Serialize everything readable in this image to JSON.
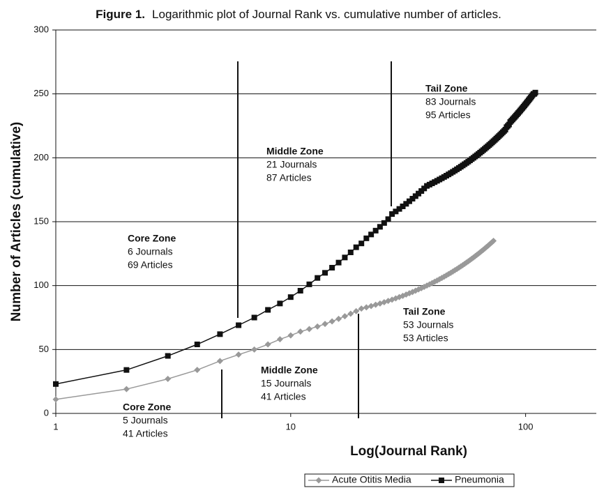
{
  "chart_data": {
    "type": "line",
    "figure_label": "Figure 1.",
    "title": "Logarithmic plot of Journal Rank vs. cumulative number of articles.",
    "xlabel": "Log(Journal Rank)",
    "ylabel": "Number of Articles (cumulative)",
    "xscale": "log",
    "xlim": [
      1,
      200
    ],
    "xticks": [
      1,
      10,
      100
    ],
    "ylim": [
      0,
      300
    ],
    "yticks": [
      0,
      50,
      100,
      150,
      200,
      250,
      300
    ],
    "grid": true,
    "legend": "bottom",
    "series": [
      {
        "name": "Acute Otitis Media",
        "color": "#999999",
        "marker": "diamond",
        "x": [
          1,
          2,
          3,
          4,
          5,
          6,
          7,
          8,
          9,
          10,
          11,
          12,
          13,
          14,
          15,
          16,
          17,
          18,
          19,
          20,
          21,
          22,
          23,
          24,
          25,
          26,
          27,
          28,
          29,
          30,
          31,
          32,
          33,
          34,
          35,
          36,
          37,
          38,
          39,
          40,
          41,
          42,
          43,
          44,
          45,
          46,
          47,
          48,
          49,
          50,
          51,
          52,
          53,
          54,
          55,
          56,
          57,
          58,
          59,
          60,
          61,
          62,
          63,
          64,
          65,
          66,
          67,
          68,
          69,
          70,
          71,
          72,
          73
        ],
        "values": [
          11,
          19,
          27,
          34,
          41,
          46,
          50,
          54,
          58,
          61,
          64,
          66,
          68,
          70,
          72,
          74,
          76,
          78,
          80,
          82,
          83,
          84,
          85,
          86,
          87,
          88,
          89,
          90,
          91,
          92,
          93,
          94,
          95,
          96,
          97,
          98,
          99,
          100,
          101,
          102,
          103,
          104,
          105,
          106,
          107,
          108,
          109,
          110,
          111,
          112,
          113,
          114,
          115,
          116,
          117,
          118,
          119,
          120,
          121,
          122,
          123,
          124,
          125,
          126,
          127,
          128,
          129,
          130,
          131,
          132,
          133,
          134,
          135
        ]
      },
      {
        "name": "Pneumonia",
        "color": "#111111",
        "marker": "square",
        "x": [
          1,
          2,
          3,
          4,
          5,
          6,
          7,
          8,
          9,
          10,
          11,
          12,
          13,
          14,
          15,
          16,
          17,
          18,
          19,
          20,
          21,
          22,
          23,
          24,
          25,
          26,
          27,
          28,
          29,
          30,
          31,
          32,
          33,
          34,
          35,
          36,
          37,
          38,
          39,
          40,
          41,
          42,
          43,
          44,
          45,
          46,
          47,
          48,
          49,
          50,
          51,
          52,
          53,
          54,
          55,
          56,
          57,
          58,
          59,
          60,
          61,
          62,
          63,
          64,
          65,
          66,
          67,
          68,
          69,
          70,
          71,
          72,
          73,
          74,
          75,
          76,
          77,
          78,
          79,
          80,
          81,
          82,
          83,
          84,
          85,
          86,
          87,
          88,
          89,
          90,
          91,
          92,
          93,
          94,
          95,
          96,
          97,
          98,
          99,
          100,
          101,
          102,
          103,
          104,
          105,
          106,
          107,
          108,
          109,
          110
        ],
        "values": [
          23,
          34,
          45,
          54,
          62,
          69,
          75,
          81,
          86,
          91,
          96,
          101,
          106,
          110,
          114,
          118,
          122,
          126,
          130,
          133,
          137,
          140,
          143,
          146,
          149,
          152,
          156,
          158,
          160,
          162,
          164,
          166,
          168,
          170,
          172,
          174,
          176,
          178,
          179,
          180,
          181,
          182,
          183,
          184,
          185,
          186,
          187,
          188,
          189,
          190,
          191,
          192,
          193,
          194,
          195,
          196,
          197,
          198,
          199,
          200,
          201,
          202,
          203,
          204,
          205,
          206,
          207,
          208,
          209,
          210,
          211,
          212,
          213,
          214,
          215,
          216,
          217,
          218,
          219,
          220,
          221,
          222,
          224,
          225,
          226,
          228,
          229,
          230,
          231,
          232,
          233,
          234,
          235,
          236,
          237,
          238,
          239,
          240,
          241,
          242,
          243,
          244,
          245,
          246,
          247,
          248,
          249,
          250,
          250,
          251
        ]
      }
    ],
    "annotations": [
      {
        "title": "Tail Zone",
        "lines": [
          "83 Journals",
          "95 Articles"
        ]
      },
      {
        "title": "Middle Zone",
        "lines": [
          "21 Journals",
          "87 Articles"
        ]
      },
      {
        "title": "Core Zone",
        "lines": [
          "6 Journals",
          "69 Articles"
        ]
      },
      {
        "title": "Tail Zone",
        "lines": [
          "53 Journals",
          "53 Articles"
        ]
      },
      {
        "title": "Middle Zone",
        "lines": [
          "15 Journals",
          "41 Articles"
        ]
      },
      {
        "title": "Core Zone",
        "lines": [
          "5 Journals",
          "41 Articles"
        ]
      }
    ]
  }
}
